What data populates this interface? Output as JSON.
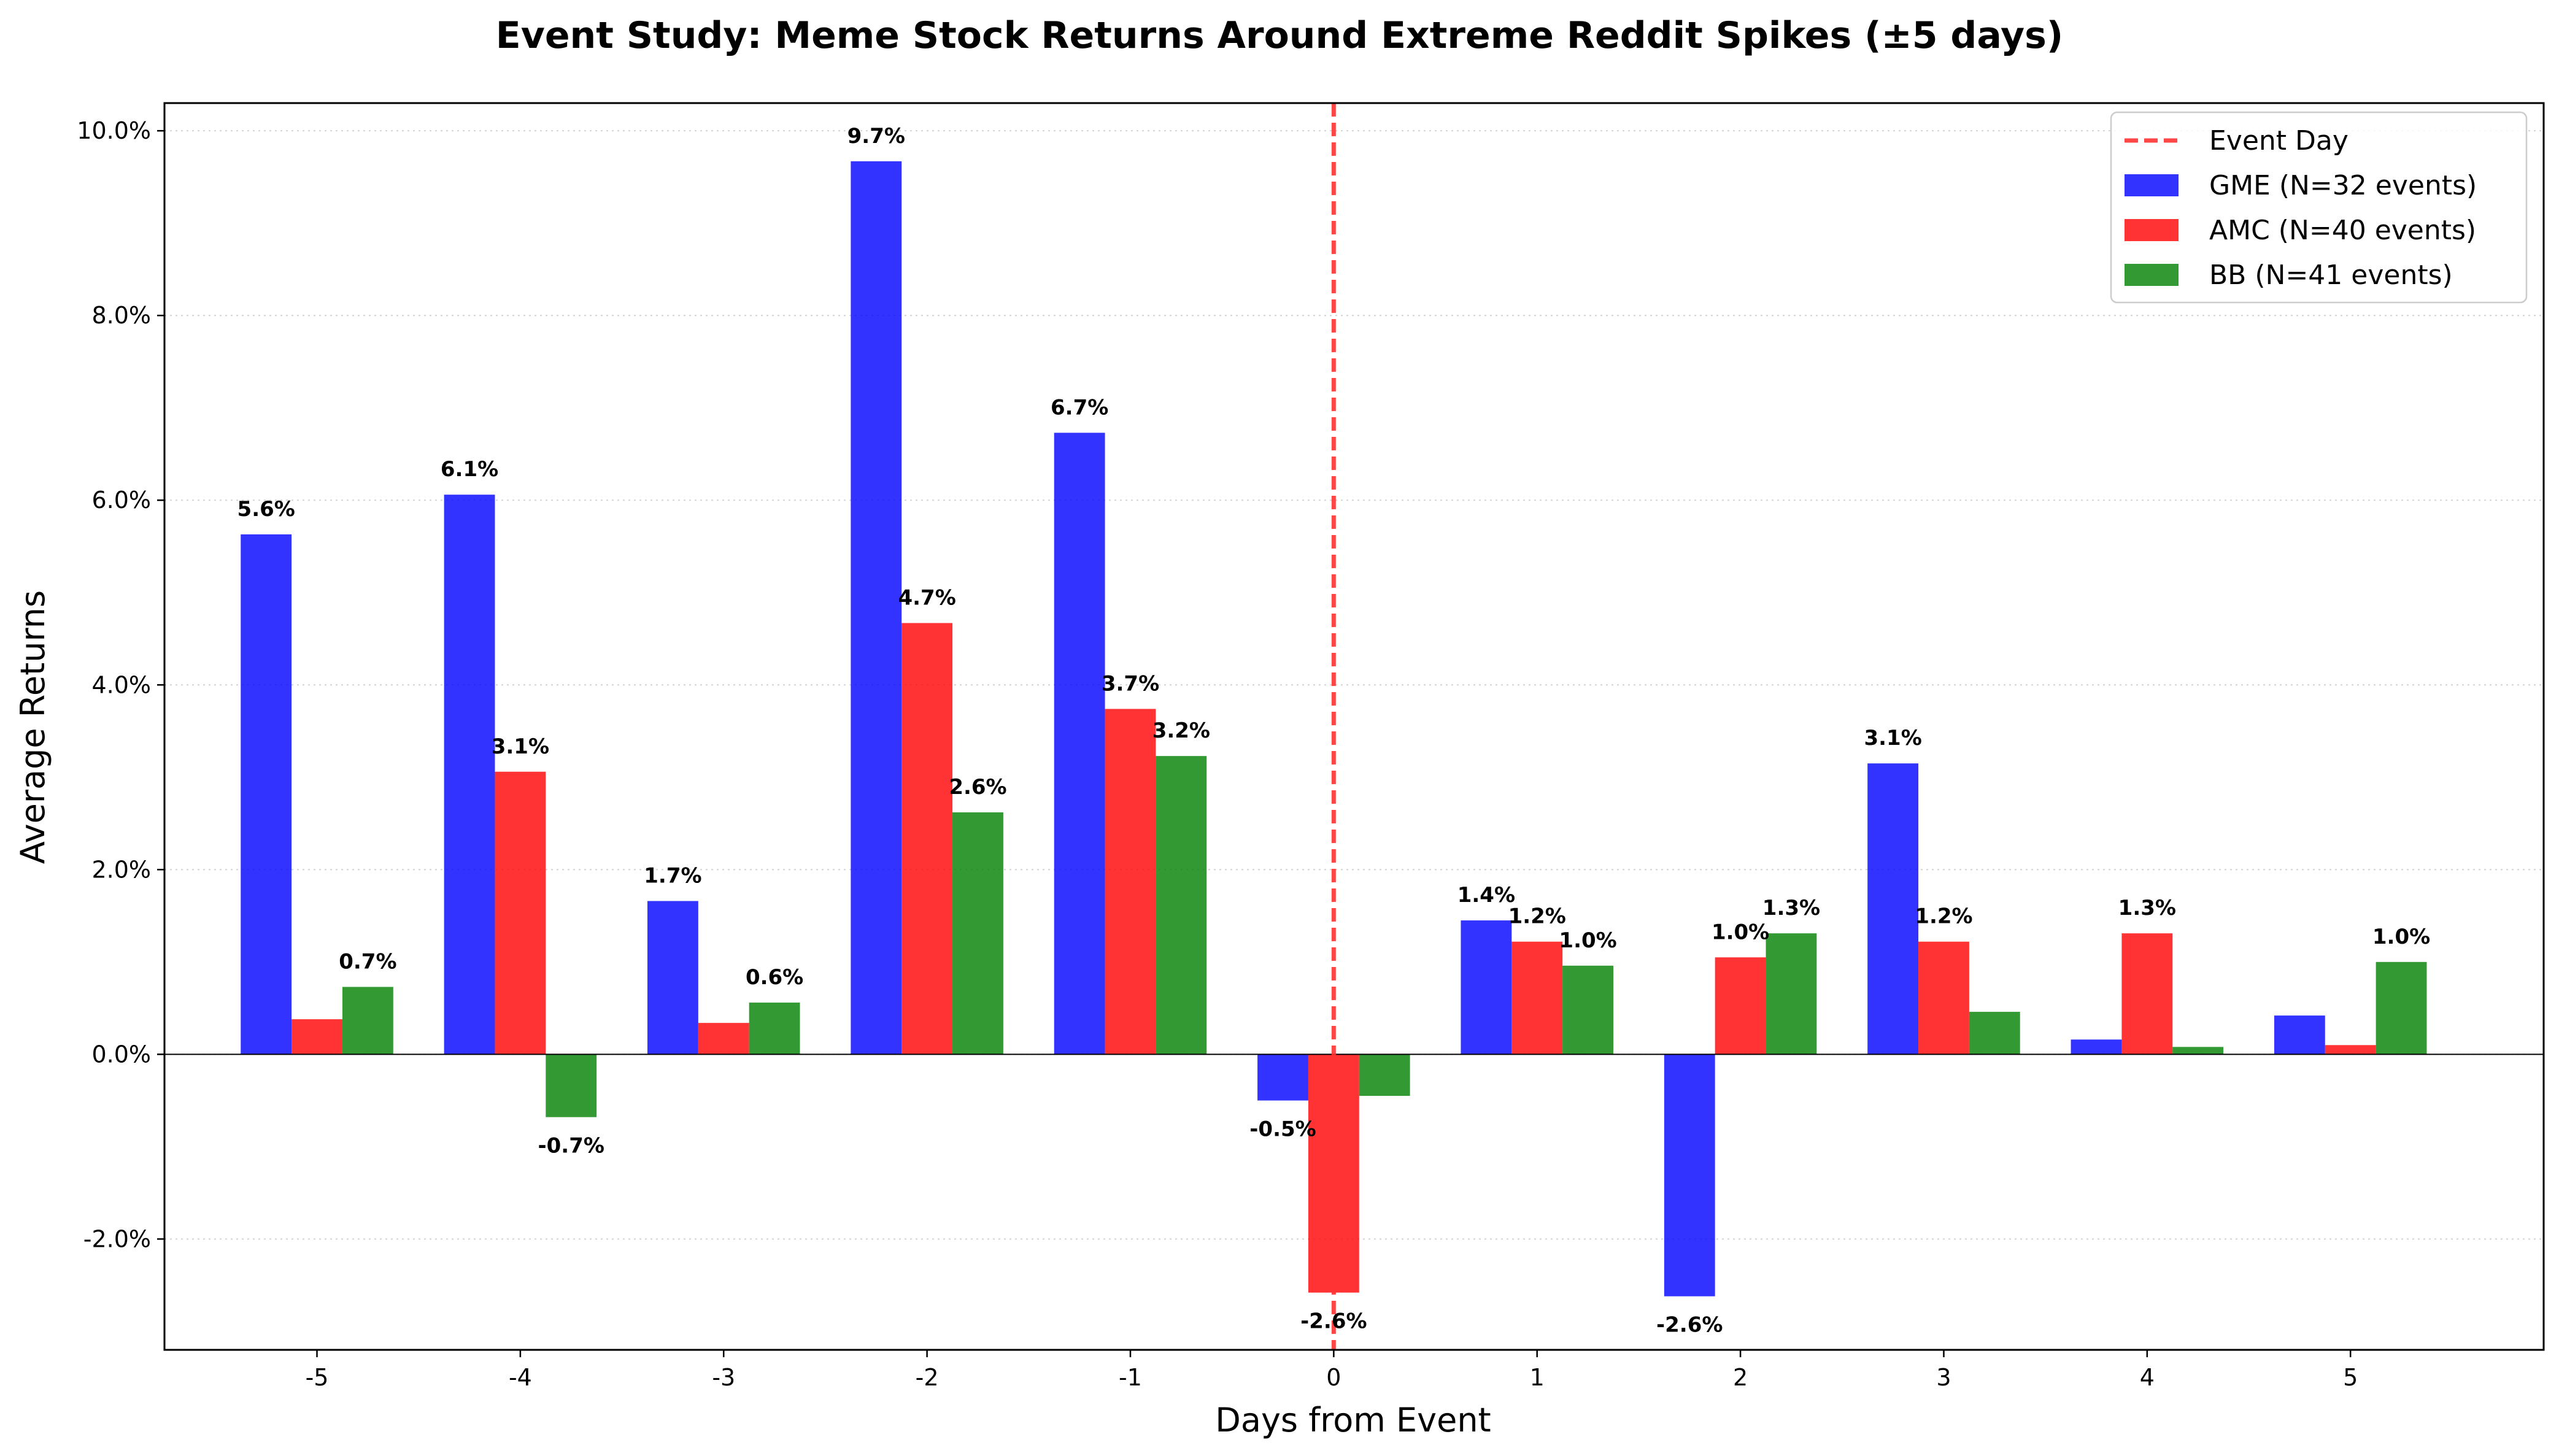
{
  "chart_data": {
    "type": "bar",
    "title": "Event Study: Meme Stock Returns Around Extreme Reddit Spikes (±5 days)",
    "xlabel": "Days from Event",
    "ylabel": "Average Returns",
    "categories": [
      "-5",
      "-4",
      "-3",
      "-2",
      "-1",
      "0",
      "1",
      "2",
      "3",
      "4",
      "5"
    ],
    "x": [
      -5,
      -4,
      -3,
      -2,
      -1,
      0,
      1,
      2,
      3,
      4,
      5
    ],
    "xlim": [
      -5.75,
      5.95
    ],
    "ylim": [
      -3.2,
      10.3
    ],
    "yticks": [
      -2.0,
      0.0,
      2.0,
      4.0,
      6.0,
      8.0,
      10.0
    ],
    "ytick_labels": [
      "-2.0%",
      "0.0%",
      "2.0%",
      "4.0%",
      "6.0%",
      "8.0%",
      "10.0%"
    ],
    "grid": "y dotted",
    "event_line": {
      "x": 0,
      "label": "Event Day",
      "color": "#ff3333"
    },
    "legend_position": "top-right",
    "series": [
      {
        "name": "GME (N=32 events)",
        "color": "#0000ff",
        "values": [
          5.63,
          6.06,
          1.66,
          9.67,
          6.73,
          -0.5,
          1.45,
          -2.62,
          3.15,
          0.16,
          0.42
        ],
        "labels": [
          "5.6%",
          "6.1%",
          "1.7%",
          "9.7%",
          "6.7%",
          "-0.5%",
          "1.4%",
          "-2.6%",
          "3.1%",
          "",
          ""
        ]
      },
      {
        "name": "AMC (N=40 events)",
        "color": "#ff0000",
        "values": [
          0.38,
          3.06,
          0.34,
          4.67,
          3.74,
          -2.58,
          1.22,
          1.05,
          1.22,
          1.31,
          0.1
        ],
        "labels": [
          "",
          "3.1%",
          "",
          "4.7%",
          "3.7%",
          "-2.6%",
          "1.2%",
          "1.0%",
          "1.2%",
          "1.3%",
          ""
        ]
      },
      {
        "name": "BB (N=41 events)",
        "color": "#008000",
        "values": [
          0.73,
          -0.68,
          0.56,
          2.62,
          3.23,
          -0.45,
          0.96,
          1.31,
          0.46,
          0.08,
          1.0
        ],
        "labels": [
          "0.7%",
          "-0.7%",
          "0.6%",
          "2.6%",
          "3.2%",
          "",
          "1.0%",
          "1.3%",
          "",
          "",
          "1.0%"
        ]
      }
    ]
  }
}
